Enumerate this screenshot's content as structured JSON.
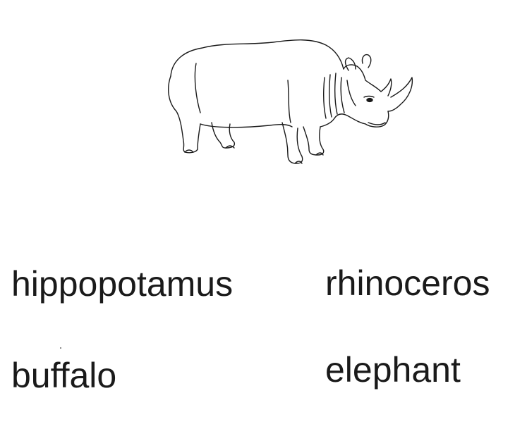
{
  "illustration": {
    "icon": "rhinoceros-line-drawing",
    "stroke_color": "#1a1a1a"
  },
  "words": [
    "hippopotamus",
    "rhinoceros",
    "buffalo",
    "elephant"
  ]
}
